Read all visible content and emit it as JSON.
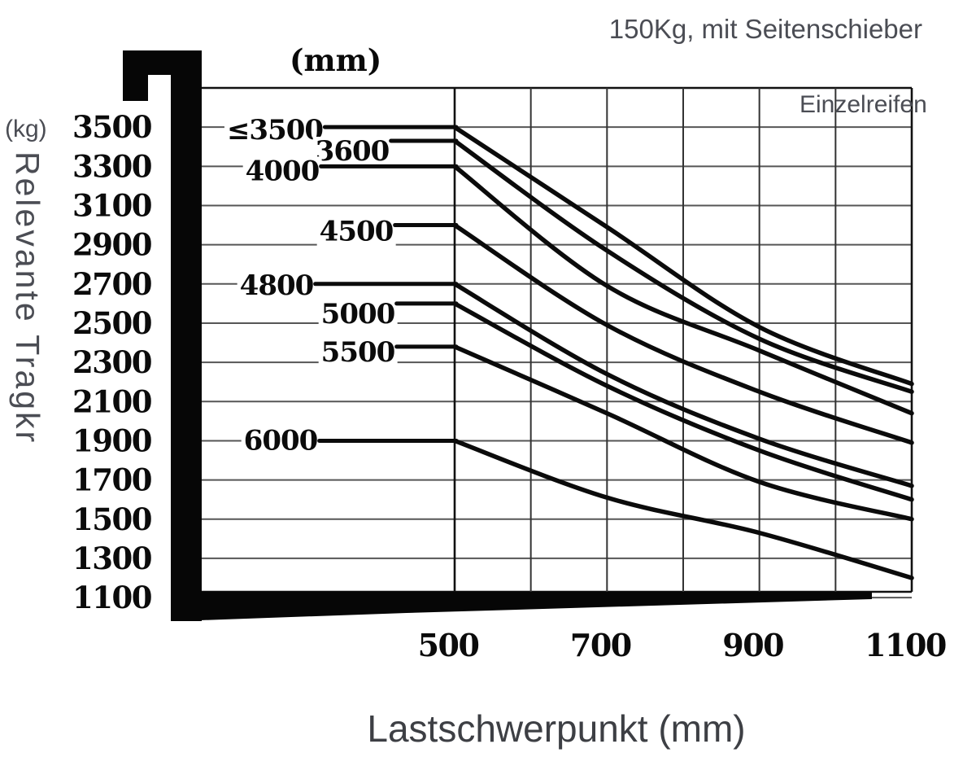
{
  "title_note": "150Kg, mit Seitenschieber",
  "tyre_note": "Einzelreifen",
  "mast_unit": "(mm)",
  "y_unit": "(kg)",
  "y_axis_title": "Relevante Tragkr",
  "x_axis_title": "Lastschwerpunkt (mm)",
  "colors": {
    "ink": "#0b0b0b",
    "gray_text": "#4b4d54",
    "grid_h": "#565656",
    "grid_v": "#333333",
    "border": "#111111"
  },
  "chart_data": {
    "type": "line",
    "title": "Tragfähigkeit / load capacity diagram",
    "xlabel": "Lastschwerpunkt (mm)",
    "ylabel": "Relevante Tragkr (kg)",
    "x_ticks": [
      500,
      700,
      900,
      1100
    ],
    "y_ticks": [
      3500,
      3300,
      3100,
      2900,
      2700,
      2500,
      2300,
      2100,
      1900,
      1700,
      1500,
      1300,
      1100
    ],
    "xlim": [
      500,
      1100
    ],
    "ylim": [
      1100,
      3700
    ],
    "grid": true,
    "grid_x_step_mm": 100,
    "grid_y_step_kg": 200,
    "legend": "inline curve labels = mast height (mm)",
    "series": [
      {
        "label": "≤3500",
        "points": [
          [
            500,
            3500
          ],
          [
            700,
            2990
          ],
          [
            900,
            2480
          ],
          [
            1100,
            2190
          ]
        ]
      },
      {
        "label": "3600",
        "points": [
          [
            500,
            3430
          ],
          [
            700,
            2870
          ],
          [
            900,
            2420
          ],
          [
            1100,
            2150
          ]
        ]
      },
      {
        "label": "4000",
        "points": [
          [
            500,
            3300
          ],
          [
            700,
            2690
          ],
          [
            900,
            2360
          ],
          [
            1100,
            2040
          ]
        ]
      },
      {
        "label": "4500",
        "points": [
          [
            500,
            3000
          ],
          [
            700,
            2490
          ],
          [
            900,
            2150
          ],
          [
            1100,
            1890
          ]
        ]
      },
      {
        "label": "4800",
        "points": [
          [
            500,
            2700
          ],
          [
            700,
            2240
          ],
          [
            900,
            1910
          ],
          [
            1100,
            1670
          ]
        ]
      },
      {
        "label": "5000",
        "points": [
          [
            500,
            2600
          ],
          [
            700,
            2180
          ],
          [
            900,
            1850
          ],
          [
            1100,
            1600
          ]
        ]
      },
      {
        "label": "5500",
        "points": [
          [
            500,
            2380
          ],
          [
            700,
            2040
          ],
          [
            900,
            1690
          ],
          [
            1100,
            1500
          ]
        ]
      },
      {
        "label": "6000",
        "points": [
          [
            500,
            1900
          ],
          [
            700,
            1610
          ],
          [
            900,
            1430
          ],
          [
            1100,
            1200
          ]
        ]
      }
    ]
  }
}
